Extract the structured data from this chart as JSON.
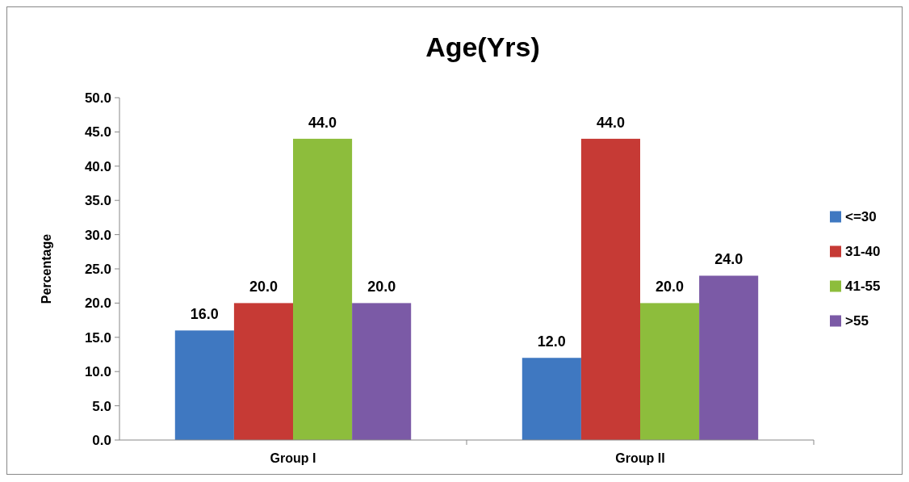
{
  "chart_data": {
    "type": "bar",
    "title": "Age(Yrs)",
    "ylabel": "Percentage",
    "categories": [
      "Group I",
      "Group II"
    ],
    "series": [
      {
        "name": "<=30",
        "color": "#3f78c1",
        "values": [
          16,
          12
        ],
        "value_labels": [
          "16.0",
          "12.0"
        ]
      },
      {
        "name": "31-40",
        "color": "#c63a35",
        "values": [
          20,
          44
        ],
        "value_labels": [
          "20.0",
          "44.0"
        ]
      },
      {
        "name": "41-55",
        "color": "#8dbd3c",
        "values": [
          44,
          20
        ],
        "value_labels": [
          "44.0",
          "20.0"
        ]
      },
      {
        "name": ">55",
        "color": "#7b5aa6",
        "values": [
          20,
          24
        ],
        "value_labels": [
          "20.0",
          "24.0"
        ]
      }
    ],
    "ylim": [
      0,
      50
    ],
    "yticks": [
      {
        "value": 0,
        "label": "0.0"
      },
      {
        "value": 5,
        "label": "5.0"
      },
      {
        "value": 10,
        "label": "10.0"
      },
      {
        "value": 15,
        "label": "15.0"
      },
      {
        "value": 20,
        "label": "20.0"
      },
      {
        "value": 25,
        "label": "25.0"
      },
      {
        "value": 30,
        "label": "30.0"
      },
      {
        "value": 35,
        "label": "35.0"
      },
      {
        "value": 40,
        "label": "40.0"
      },
      {
        "value": 45,
        "label": "45.0"
      },
      {
        "value": 50,
        "label": "50.0"
      }
    ],
    "legend": "right",
    "grid": false
  }
}
